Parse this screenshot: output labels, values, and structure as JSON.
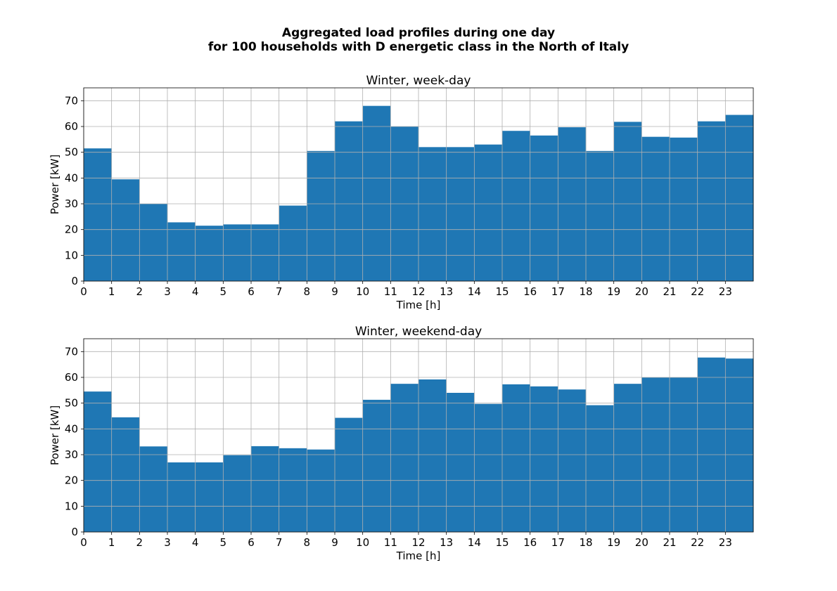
{
  "title_line1": "Aggregated load profiles during one day",
  "title_line2": "for 100 households with D energetic class in the North of Italy",
  "chart_data": [
    {
      "type": "bar",
      "title": "Winter, week-day",
      "xlabel": "Time [h]",
      "ylabel": "Power [kW]",
      "x_ticks": [
        "0",
        "1",
        "2",
        "3",
        "4",
        "5",
        "6",
        "7",
        "8",
        "9",
        "10",
        "11",
        "12",
        "13",
        "14",
        "15",
        "16",
        "17",
        "18",
        "19",
        "20",
        "21",
        "22",
        "23"
      ],
      "y_ticks": [
        "0",
        "10",
        "20",
        "30",
        "40",
        "50",
        "60",
        "70"
      ],
      "xlim": [
        0,
        24
      ],
      "ylim": [
        0,
        75
      ],
      "grid": true,
      "color": "#1f77b4",
      "values": [
        51.5,
        39.5,
        30,
        22.8,
        21.5,
        22,
        22,
        29.3,
        50.5,
        62,
        68,
        60,
        52,
        52,
        53,
        58.3,
        56.5,
        59.7,
        50.5,
        61.8,
        56,
        55.7,
        62,
        64.5
      ]
    },
    {
      "type": "bar",
      "title": "Winter, weekend-day",
      "xlabel": "Time [h]",
      "ylabel": "Power [kW]",
      "x_ticks": [
        "0",
        "1",
        "2",
        "3",
        "4",
        "5",
        "6",
        "7",
        "8",
        "9",
        "10",
        "11",
        "12",
        "13",
        "14",
        "15",
        "16",
        "17",
        "18",
        "19",
        "20",
        "21",
        "22",
        "23"
      ],
      "y_ticks": [
        "0",
        "10",
        "20",
        "30",
        "40",
        "50",
        "60",
        "70"
      ],
      "xlim": [
        0,
        24
      ],
      "ylim": [
        0,
        75
      ],
      "grid": true,
      "color": "#1f77b4",
      "values": [
        54.5,
        44.5,
        33.2,
        27,
        27,
        29.8,
        33.3,
        32.5,
        32,
        44.3,
        51.3,
        57.5,
        59.2,
        54,
        49.7,
        57.3,
        56.5,
        55.3,
        49.2,
        57.5,
        60,
        60,
        67.7,
        67.3
      ]
    }
  ]
}
